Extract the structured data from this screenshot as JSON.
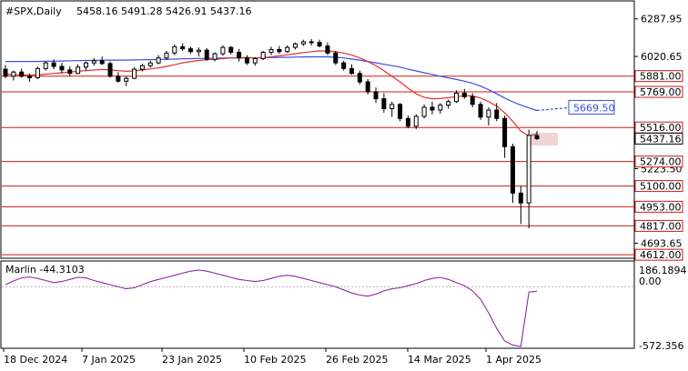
{
  "header": {
    "symbol": "#SPX,Daily",
    "ohlc": "5458.16 5491.28 5426.91 5437.16"
  },
  "indicator": {
    "name": "Marlin -44.3103",
    "axis_labels": [
      "186.1894",
      "0.00",
      "-572.356"
    ]
  },
  "colors": {
    "bull": "#ffffff",
    "bear": "#000000",
    "ma_fast": "#e03030",
    "ma_slow": "#3b4fe0",
    "level": "#d01818",
    "indicator": "#8a2aa0",
    "grid": "#000000"
  },
  "chart_data": {
    "type": "candlestick",
    "y_axis_ticks": [
      "6287.95",
      "6020.65",
      "5223.50",
      "4693.65"
    ],
    "x_axis_ticks": [
      "18 Dec 2024",
      "7 Jan 2025",
      "23 Jan 2025",
      "10 Feb 2025",
      "26 Feb 2025",
      "14 Mar 2025",
      "1 Apr 2025"
    ],
    "ylim": [
      4600,
      6370
    ],
    "levels": [
      "5881.00",
      "5769.00",
      "5516.00",
      "5274.00",
      "5100.00",
      "4953.00",
      "4817.00",
      "4612.00"
    ],
    "current_price": "5437.16",
    "ma_slow_label": "5669.50",
    "candles": [
      [
        5930,
        5960,
        5865,
        5880
      ],
      [
        5880,
        5920,
        5850,
        5910
      ],
      [
        5910,
        5935,
        5870,
        5880
      ],
      [
        5880,
        5900,
        5840,
        5870
      ],
      [
        5870,
        5950,
        5860,
        5935
      ],
      [
        5935,
        5985,
        5920,
        5975
      ],
      [
        5975,
        6000,
        5930,
        5950
      ],
      [
        5950,
        5975,
        5900,
        5925
      ],
      [
        5925,
        5950,
        5880,
        5900
      ],
      [
        5900,
        5965,
        5895,
        5945
      ],
      [
        5945,
        5985,
        5920,
        5975
      ],
      [
        5975,
        6010,
        5955,
        5990
      ],
      [
        5990,
        6020,
        5960,
        5970
      ],
      [
        5970,
        5985,
        5870,
        5880
      ],
      [
        5880,
        5910,
        5835,
        5845
      ],
      [
        5845,
        5880,
        5810,
        5865
      ],
      [
        5865,
        5945,
        5860,
        5930
      ],
      [
        5930,
        5970,
        5915,
        5955
      ],
      [
        5955,
        5990,
        5940,
        5975
      ],
      [
        5975,
        6030,
        5965,
        6010
      ],
      [
        6010,
        6060,
        5995,
        6045
      ],
      [
        6045,
        6105,
        6030,
        6090
      ],
      [
        6090,
        6115,
        6060,
        6075
      ],
      [
        6075,
        6090,
        6040,
        6055
      ],
      [
        6055,
        6085,
        6020,
        6065
      ],
      [
        6065,
        6080,
        5990,
        6000
      ],
      [
        6000,
        6050,
        5985,
        6040
      ],
      [
        6040,
        6100,
        6025,
        6085
      ],
      [
        6085,
        6095,
        6035,
        6050
      ],
      [
        6050,
        6075,
        5985,
        6010
      ],
      [
        6010,
        6030,
        5960,
        5975
      ],
      [
        5975,
        6015,
        5955,
        6005
      ],
      [
        6005,
        6060,
        5995,
        6050
      ],
      [
        6050,
        6090,
        6030,
        6070
      ],
      [
        6070,
        6095,
        6040,
        6055
      ],
      [
        6055,
        6100,
        6045,
        6085
      ],
      [
        6085,
        6120,
        6070,
        6110
      ],
      [
        6110,
        6140,
        6095,
        6125
      ],
      [
        6125,
        6145,
        6100,
        6120
      ],
      [
        6120,
        6140,
        6085,
        6095
      ],
      [
        6095,
        6120,
        6030,
        6045
      ],
      [
        6045,
        6060,
        5960,
        5975
      ],
      [
        5975,
        5990,
        5920,
        5935
      ],
      [
        5935,
        5965,
        5890,
        5900
      ],
      [
        5900,
        5920,
        5820,
        5840
      ],
      [
        5840,
        5860,
        5750,
        5770
      ],
      [
        5770,
        5800,
        5690,
        5720
      ],
      [
        5720,
        5760,
        5620,
        5650
      ],
      [
        5650,
        5700,
        5590,
        5680
      ],
      [
        5680,
        5690,
        5560,
        5580
      ],
      [
        5580,
        5600,
        5510,
        5525
      ],
      [
        5525,
        5610,
        5505,
        5595
      ],
      [
        5595,
        5680,
        5580,
        5660
      ],
      [
        5660,
        5700,
        5610,
        5640
      ],
      [
        5640,
        5690,
        5615,
        5675
      ],
      [
        5675,
        5715,
        5650,
        5700
      ],
      [
        5700,
        5780,
        5690,
        5760
      ],
      [
        5760,
        5790,
        5720,
        5735
      ],
      [
        5735,
        5760,
        5660,
        5680
      ],
      [
        5680,
        5700,
        5570,
        5590
      ],
      [
        5590,
        5660,
        5530,
        5640
      ],
      [
        5640,
        5690,
        5560,
        5580
      ],
      [
        5580,
        5600,
        5300,
        5380
      ],
      [
        5380,
        5400,
        4980,
        5050
      ],
      [
        5050,
        5100,
        4830,
        4980
      ],
      [
        4980,
        5500,
        4800,
        5460
      ],
      [
        5458,
        5491,
        5427,
        5437
      ]
    ],
    "ma_fast": [
      5895,
      5892,
      5890,
      5888,
      5890,
      5895,
      5900,
      5905,
      5910,
      5915,
      5920,
      5925,
      5928,
      5925,
      5920,
      5915,
      5918,
      5925,
      5932,
      5940,
      5950,
      5962,
      5975,
      5985,
      5992,
      5997,
      6000,
      6005,
      6010,
      6012,
      6012,
      6010,
      6012,
      6018,
      6025,
      6032,
      6040,
      6048,
      6055,
      6060,
      6060,
      6055,
      6045,
      6030,
      6010,
      5985,
      5955,
      5920,
      5880,
      5840,
      5795,
      5755,
      5730,
      5720,
      5722,
      5728,
      5735,
      5742,
      5740,
      5725,
      5700,
      5668,
      5620,
      5560,
      5490,
      5455,
      5470
    ],
    "ma_slow": [
      5985,
      5985,
      5985,
      5985,
      5985,
      5986,
      5987,
      5988,
      5990,
      5991,
      5992,
      5993,
      5994,
      5995,
      5995,
      5995,
      5996,
      5997,
      5998,
      5999,
      6000,
      6002,
      6004,
      6005,
      6006,
      6007,
      6008,
      6009,
      6010,
      6010,
      6011,
      6011,
      6012,
      6013,
      6014,
      6015,
      6016,
      6017,
      6018,
      6018,
      6018,
      6015,
      6010,
      6002,
      5995,
      5985,
      5975,
      5965,
      5955,
      5945,
      5930,
      5918,
      5905,
      5893,
      5880,
      5868,
      5857,
      5845,
      5830,
      5810,
      5785,
      5755,
      5725,
      5698,
      5675,
      5655,
      5637
    ],
    "ma_slow_projection": [
      5637,
      5669.5
    ],
    "marlin": [
      20,
      55,
      85,
      95,
      80,
      60,
      40,
      50,
      70,
      90,
      85,
      60,
      40,
      20,
      0,
      -20,
      -10,
      20,
      50,
      70,
      90,
      110,
      130,
      150,
      160,
      150,
      130,
      110,
      90,
      70,
      60,
      50,
      60,
      80,
      100,
      110,
      100,
      80,
      60,
      40,
      20,
      0,
      -30,
      -60,
      -80,
      -90,
      -70,
      -40,
      -20,
      -10,
      10,
      30,
      60,
      80,
      90,
      70,
      40,
      10,
      -40,
      -120,
      -250,
      -400,
      -520,
      -560,
      -572,
      -50,
      -44.3
    ]
  }
}
